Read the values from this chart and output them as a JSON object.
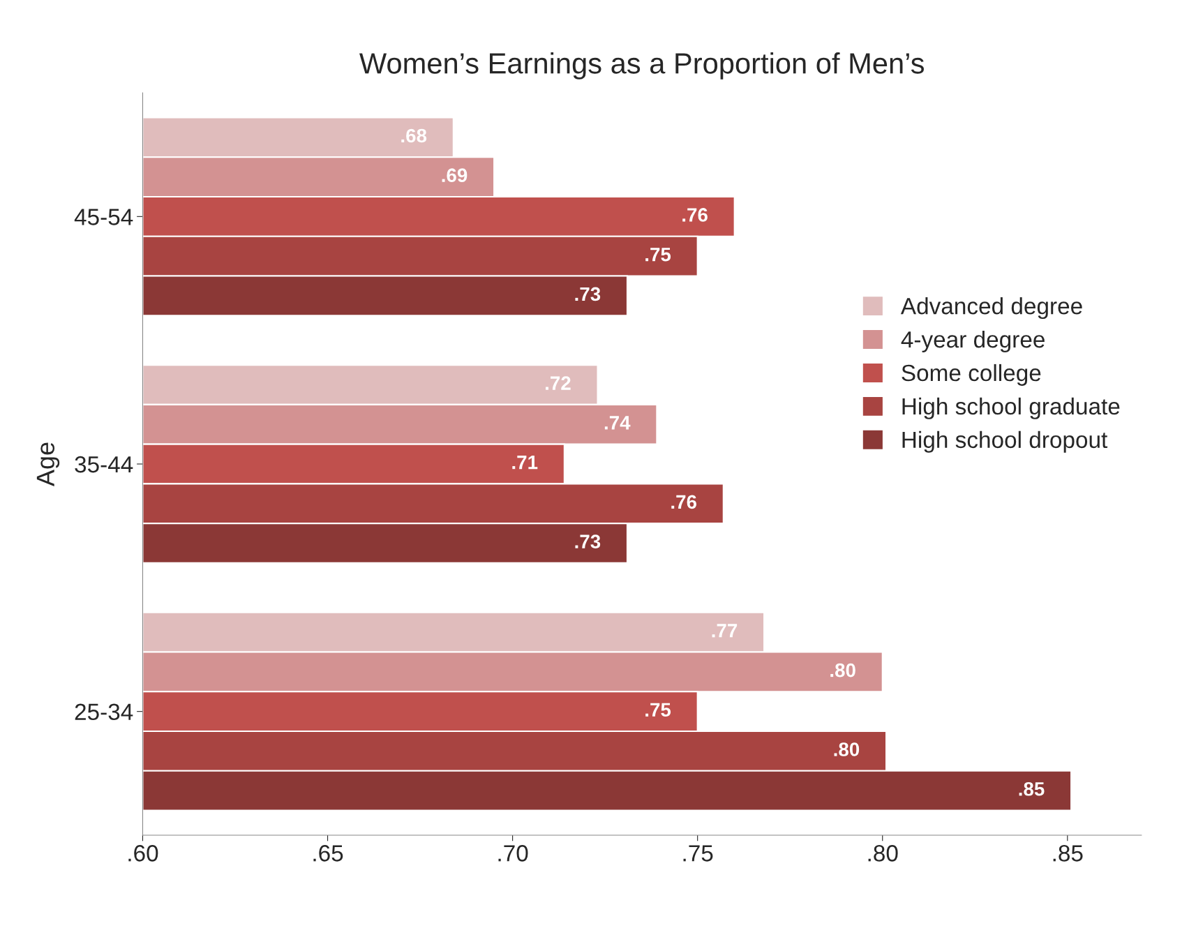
{
  "chart_data": {
    "type": "bar",
    "orientation": "horizontal",
    "title": "Women’s Earnings as a Proportion of Men’s",
    "ylabel": "Age",
    "categories": [
      "45-54",
      "35-44",
      "25-34"
    ],
    "series": [
      {
        "name": "Advanced degree",
        "color": "#e0bcbc",
        "values": [
          0.684,
          0.723,
          0.768
        ],
        "value_labels": [
          ".68",
          ".72",
          ".77"
        ]
      },
      {
        "name": "4-year degree",
        "color": "#d39292",
        "values": [
          0.695,
          0.739,
          0.8
        ],
        "value_labels": [
          ".69",
          ".74",
          ".80"
        ]
      },
      {
        "name": "Some college",
        "color": "#c0504d",
        "values": [
          0.76,
          0.714,
          0.75
        ],
        "value_labels": [
          ".76",
          ".71",
          ".75"
        ]
      },
      {
        "name": "High school graduate",
        "color": "#a84441",
        "values": [
          0.75,
          0.757,
          0.801
        ],
        "value_labels": [
          ".75",
          ".76",
          ".80"
        ]
      },
      {
        "name": "High school dropout",
        "color": "#8b3836",
        "values": [
          0.731,
          0.731,
          0.851
        ],
        "value_labels": [
          ".73",
          ".73",
          ".85"
        ]
      }
    ],
    "xlim": [
      0.6,
      0.87
    ],
    "xticks": [
      {
        "value": 0.6,
        "label": ".60"
      },
      {
        "value": 0.65,
        "label": ".65"
      },
      {
        "value": 0.7,
        "label": ".70"
      },
      {
        "value": 0.75,
        "label": ".75"
      },
      {
        "value": 0.8,
        "label": ".80"
      },
      {
        "value": 0.85,
        "label": ".85"
      }
    ],
    "legend": "right",
    "grid": false
  }
}
